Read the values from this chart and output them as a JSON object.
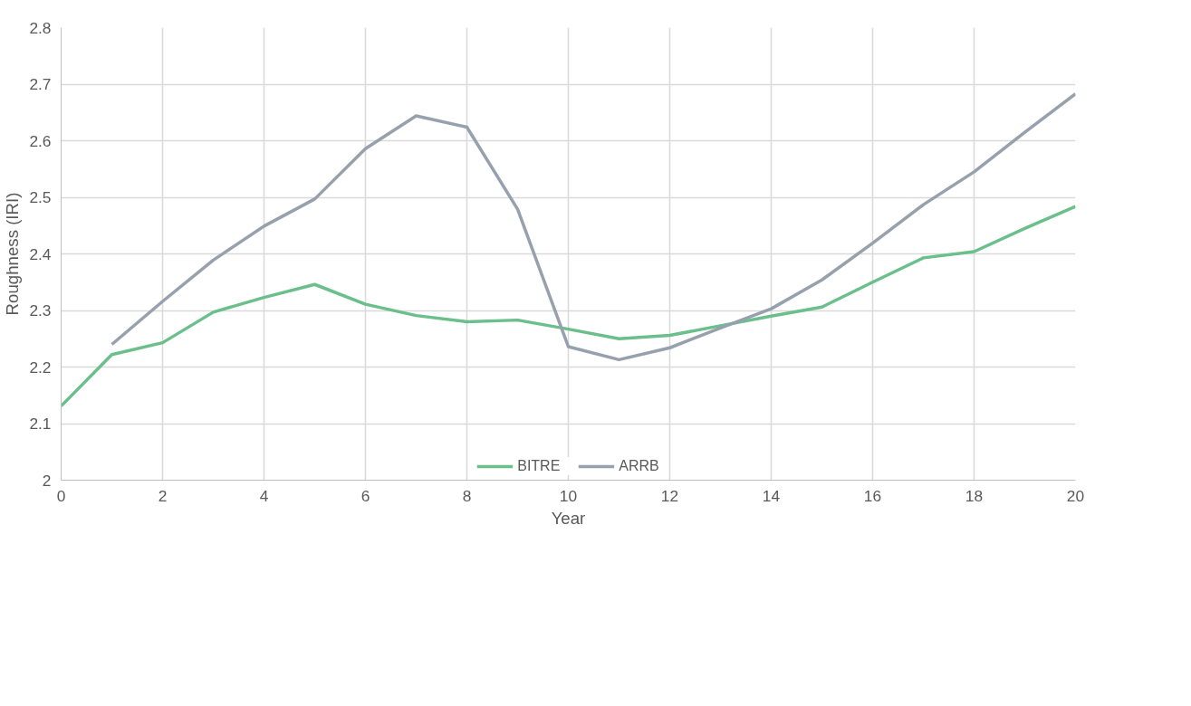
{
  "chart_data": {
    "type": "line",
    "xlabel": "Year",
    "ylabel": "Roughness (IRI)",
    "x": [
      0,
      1,
      2,
      3,
      4,
      5,
      6,
      7,
      8,
      9,
      10,
      11,
      12,
      13,
      14,
      15,
      16,
      17,
      18,
      19,
      20
    ],
    "series": [
      {
        "name": "BITRE",
        "color": "#6abf8b",
        "values": [
          2.131,
          2.222,
          2.243,
          2.297,
          2.323,
          2.346,
          2.311,
          2.291,
          2.28,
          2.283,
          2.267,
          2.25,
          2.256,
          2.273,
          2.29,
          2.306,
          2.35,
          2.393,
          2.404,
          2.445,
          2.484
        ]
      },
      {
        "name": "ARRB",
        "color": "#97a0ad",
        "values": [
          null,
          2.24,
          2.316,
          2.389,
          2.449,
          2.497,
          2.586,
          2.644,
          2.624,
          2.479,
          2.236,
          2.213,
          2.234,
          2.269,
          2.303,
          2.354,
          2.419,
          2.487,
          2.545,
          2.615,
          2.683
        ]
      }
    ],
    "xlim": [
      0,
      20
    ],
    "xticks": [
      0,
      2,
      4,
      6,
      8,
      10,
      12,
      14,
      16,
      18,
      20
    ],
    "ylim": [
      2,
      2.8
    ],
    "yticks": [
      2,
      2.1,
      2.2,
      2.3,
      2.4,
      2.5,
      2.6,
      2.7,
      2.8
    ],
    "grid": true,
    "legend": "bottom",
    "marker": "none",
    "line_style": "solid"
  }
}
